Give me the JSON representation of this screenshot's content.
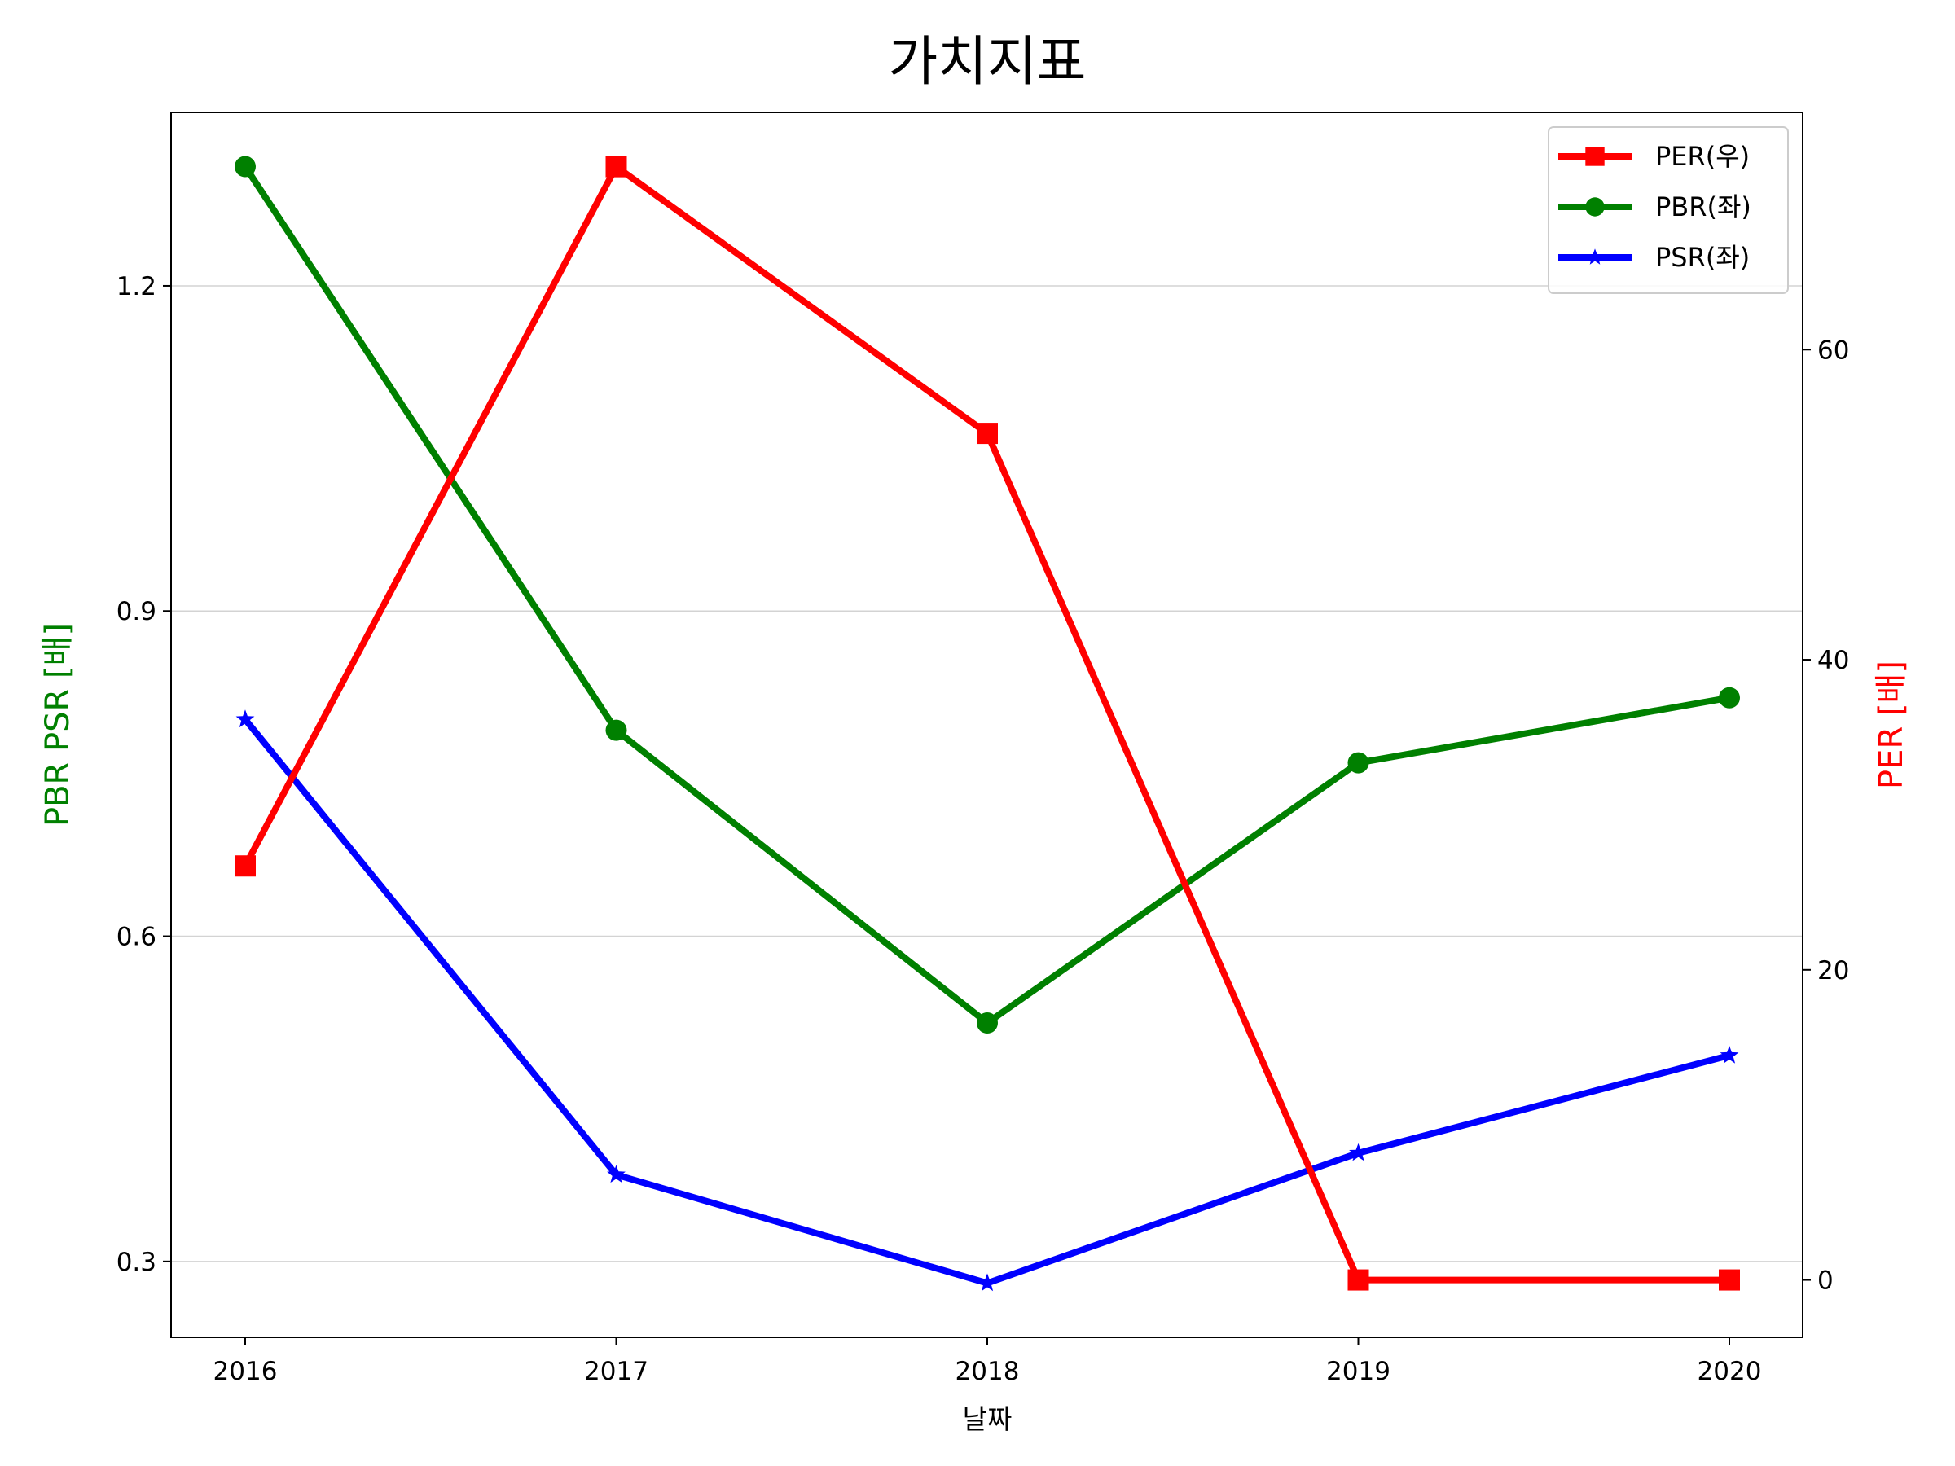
{
  "chart_data": {
    "type": "line",
    "title": "가치지표",
    "xlabel": "날짜",
    "ylabel_left": "PBR PSR [배]",
    "ylabel_right": "PER [배]",
    "categories": [
      "2016",
      "2017",
      "2018",
      "2019",
      "2020"
    ],
    "left_axis": {
      "ylim": [
        0.23,
        1.36
      ],
      "ticks": [
        0.3,
        0.6,
        0.9,
        1.2
      ],
      "tick_labels": [
        "0.3",
        "0.6",
        "0.9",
        "1.2"
      ]
    },
    "right_axis": {
      "ylim": [
        -3.7,
        75.3
      ],
      "ticks": [
        0,
        20,
        40,
        60
      ],
      "tick_labels": [
        "0",
        "20",
        "40",
        "60"
      ]
    },
    "grid": "horizontal (left axis)",
    "legend": "top-right",
    "series": [
      {
        "name": "PER(우)",
        "axis": "right",
        "color": "#ff0000",
        "marker": "square",
        "values": [
          26.7,
          71.8,
          54.6,
          0,
          0
        ]
      },
      {
        "name": "PBR(좌)",
        "axis": "left",
        "color": "#008000",
        "marker": "circle",
        "values": [
          1.31,
          0.79,
          0.52,
          0.76,
          0.82
        ]
      },
      {
        "name": "PSR(좌)",
        "axis": "left",
        "color": "#0000ff",
        "marker": "star",
        "values": [
          0.8,
          0.38,
          0.28,
          0.4,
          0.49
        ]
      }
    ],
    "colors": {
      "left_label": "#008000",
      "right_label": "#ff0000"
    }
  }
}
